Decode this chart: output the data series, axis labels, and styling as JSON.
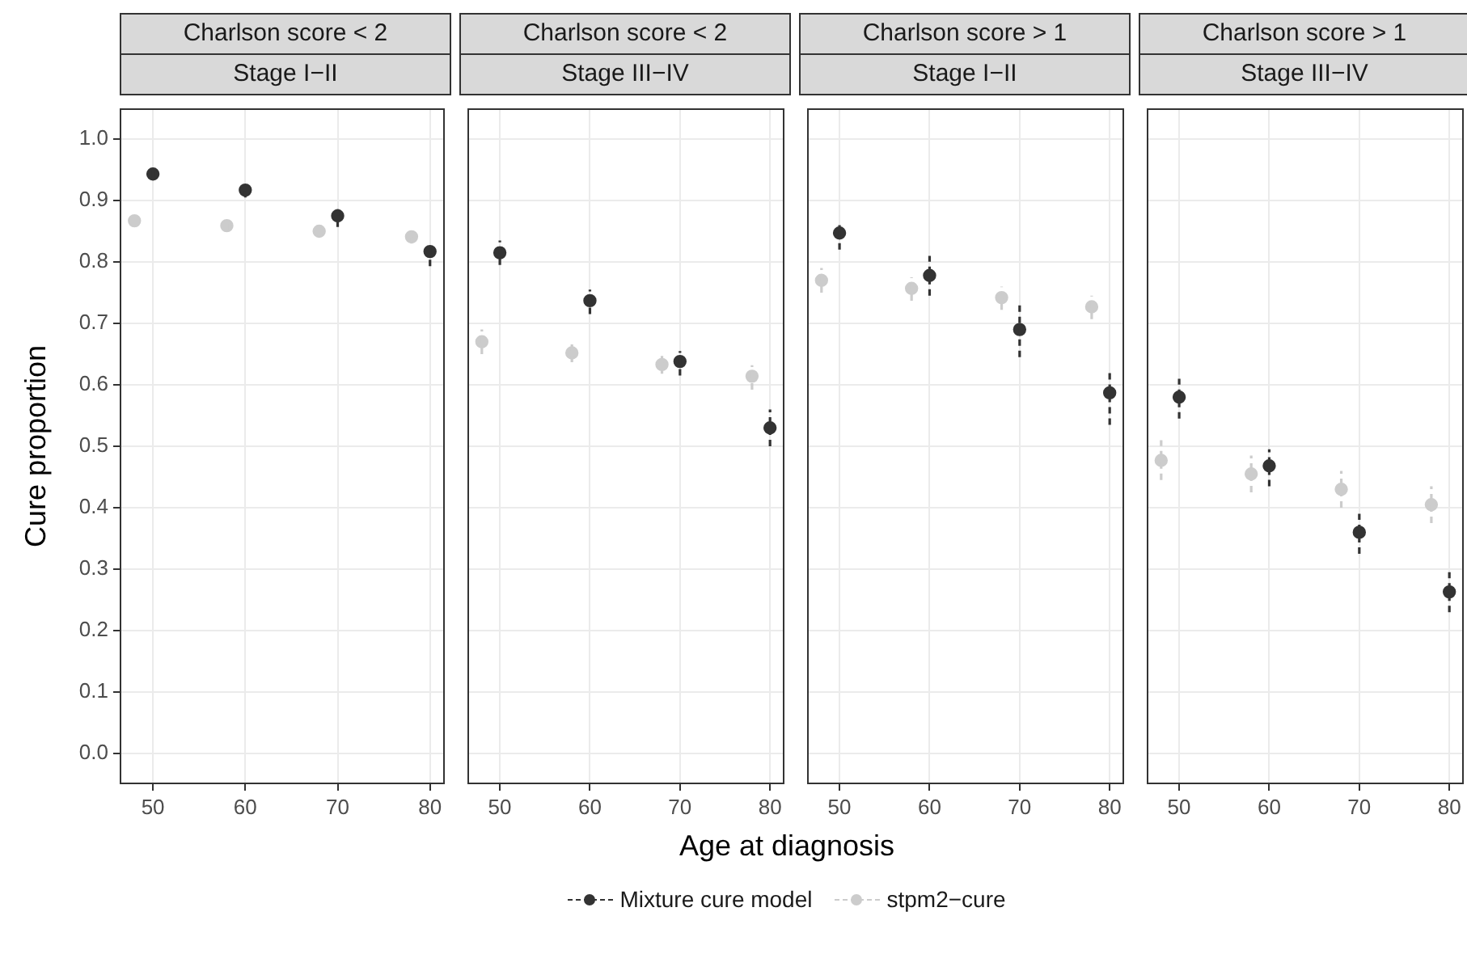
{
  "chart_data": [
    {
      "type": "scatter",
      "title": "Charlson score < 2",
      "subtitle": "Stage I−II",
      "annotations": [
        "Age at diagnosis"
      ],
      "ylabel": "Cure proportion",
      "legend": "bottom",
      "grid": true,
      "marker": "circle",
      "xlim": [
        46.4,
        81.6
      ],
      "ylim": [
        -0.05,
        1.05
      ],
      "xticks": [
        50,
        60,
        70,
        80
      ],
      "yticks": [
        {
          "value": 0,
          "label": "0.0"
        },
        0.1,
        0.2,
        0.3,
        0.4,
        0.5,
        0.6,
        0.7,
        0.8,
        0.9,
        {
          "value": 1,
          "label": "1.0"
        }
      ],
      "series": [
        {
          "name": "Mixture cure model",
          "color": "#333333",
          "x": [
            50,
            60,
            70,
            80
          ],
          "values": [
            0.943,
            0.917,
            0.875,
            0.817
          ],
          "errors": [
            [
              0.938,
              0.95
            ],
            [
              0.905,
              0.925
            ],
            [
              0.857,
              0.892
            ],
            [
              0.793,
              0.83
            ]
          ]
        },
        {
          "name": "stpm2−cure",
          "color": "#cccccc",
          "x": [
            48,
            58,
            68,
            78
          ],
          "values": [
            0.867,
            0.859,
            0.85,
            0.841
          ],
          "errors": [
            [
              0.857,
              0.875
            ],
            [
              0.851,
              0.865
            ],
            [
              0.842,
              0.857
            ],
            [
              0.83,
              0.851
            ]
          ]
        }
      ]
    },
    {
      "type": "scatter",
      "title": "Charlson score < 2",
      "subtitle": "Stage III−IV",
      "tick_labels": "x",
      "grid": true,
      "marker": "circle",
      "xlim": [
        46.4,
        81.6
      ],
      "ylim": [
        -0.05,
        1.05
      ],
      "xticks": [
        50,
        60,
        70,
        80
      ],
      "yticks": [
        0,
        0.1,
        0.2,
        0.3,
        0.4,
        0.5,
        0.6,
        0.7,
        0.8,
        0.9,
        1
      ],
      "series": [
        {
          "color": "#333333",
          "x": [
            50,
            60,
            70,
            80
          ],
          "values": [
            0.815,
            0.737,
            0.638,
            0.53
          ],
          "errors": [
            [
              0.795,
              0.835
            ],
            [
              0.715,
              0.755
            ],
            [
              0.615,
              0.655
            ],
            [
              0.5,
              0.56
            ]
          ]
        },
        {
          "color": "#cccccc",
          "x": [
            48,
            58,
            68,
            78
          ],
          "values": [
            0.67,
            0.652,
            0.633,
            0.614
          ],
          "errors": [
            [
              0.65,
              0.69
            ],
            [
              0.637,
              0.667
            ],
            [
              0.618,
              0.65
            ],
            [
              0.592,
              0.632
            ]
          ]
        }
      ]
    },
    {
      "type": "scatter",
      "title": "Charlson score > 1",
      "subtitle": "Stage I−II",
      "tick_labels": "x",
      "grid": true,
      "marker": "circle",
      "xlim": [
        46.4,
        81.6
      ],
      "ylim": [
        -0.05,
        1.05
      ],
      "xticks": [
        50,
        60,
        70,
        80
      ],
      "yticks": [
        0,
        0.1,
        0.2,
        0.3,
        0.4,
        0.5,
        0.6,
        0.7,
        0.8,
        0.9,
        1
      ],
      "series": [
        {
          "color": "#333333",
          "x": [
            50,
            60,
            70,
            80
          ],
          "values": [
            0.847,
            0.778,
            0.69,
            0.587
          ],
          "errors": [
            [
              0.82,
              0.86
            ],
            [
              0.745,
              0.81
            ],
            [
              0.645,
              0.73
            ],
            [
              0.535,
              0.625
            ]
          ]
        },
        {
          "color": "#cccccc",
          "x": [
            48,
            58,
            68,
            78
          ],
          "values": [
            0.77,
            0.757,
            0.742,
            0.727
          ],
          "errors": [
            [
              0.75,
              0.79
            ],
            [
              0.737,
              0.775
            ],
            [
              0.722,
              0.76
            ],
            [
              0.707,
              0.745
            ]
          ]
        }
      ]
    },
    {
      "type": "scatter",
      "title": "Charlson score > 1",
      "subtitle": "Stage III−IV",
      "tick_labels": "x",
      "grid": true,
      "marker": "circle",
      "xlim": [
        46.4,
        81.6
      ],
      "ylim": [
        -0.05,
        1.05
      ],
      "xticks": [
        50,
        60,
        70,
        80
      ],
      "yticks": [
        0,
        0.1,
        0.2,
        0.3,
        0.4,
        0.5,
        0.6,
        0.7,
        0.8,
        0.9,
        1
      ],
      "series": [
        {
          "color": "#333333",
          "x": [
            50,
            60,
            70,
            80
          ],
          "values": [
            0.58,
            0.468,
            0.36,
            0.263
          ],
          "errors": [
            [
              0.545,
              0.61
            ],
            [
              0.435,
              0.495
            ],
            [
              0.325,
              0.39
            ],
            [
              0.23,
              0.295
            ]
          ]
        },
        {
          "color": "#cccccc",
          "x": [
            48,
            58,
            68,
            78
          ],
          "values": [
            0.477,
            0.455,
            0.43,
            0.405
          ],
          "errors": [
            [
              0.445,
              0.51
            ],
            [
              0.425,
              0.485
            ],
            [
              0.4,
              0.46
            ],
            [
              0.375,
              0.435
            ]
          ]
        }
      ]
    }
  ]
}
